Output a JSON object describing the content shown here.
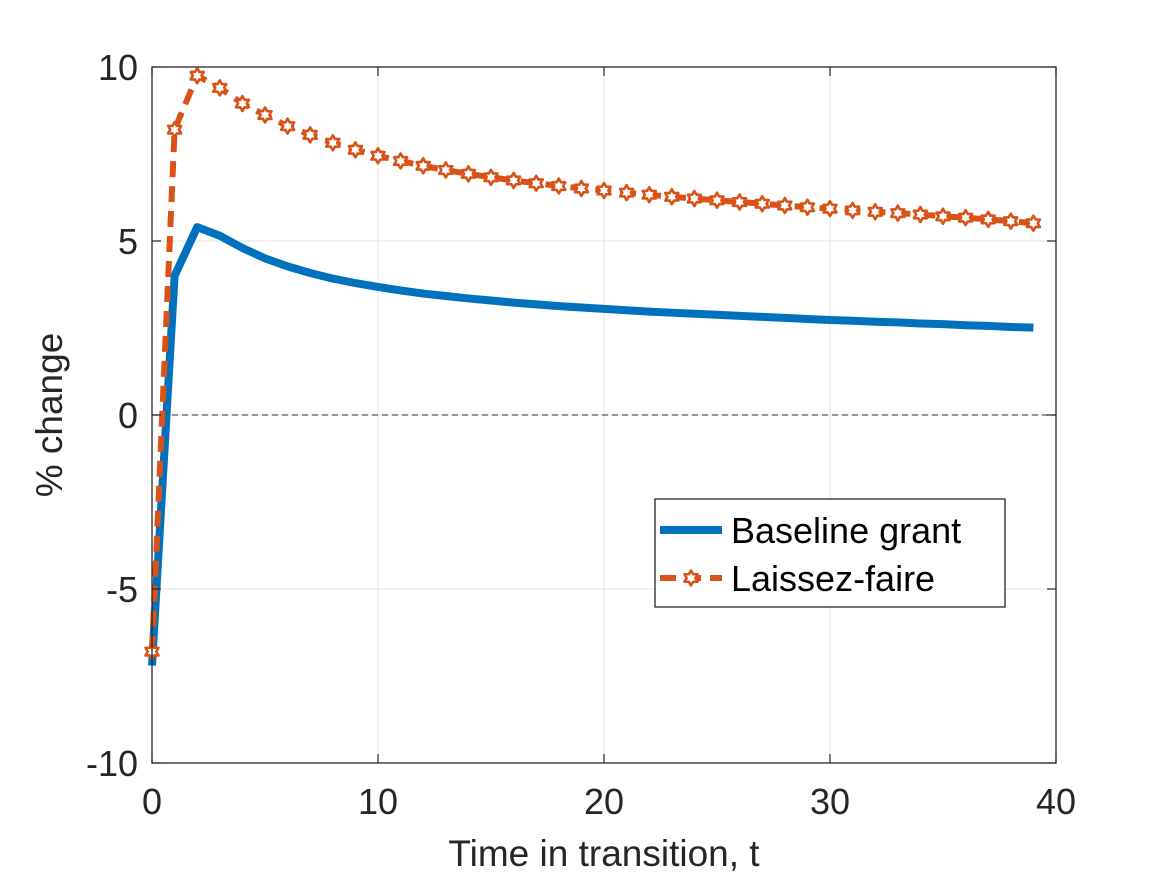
{
  "chart_data": {
    "type": "line",
    "xlabel": "Time in transition, t",
    "ylabel": "% change",
    "xlim": [
      0,
      40
    ],
    "ylim": [
      -10,
      10
    ],
    "xticks": [
      0,
      10,
      20,
      30,
      40
    ],
    "yticks": [
      -10,
      -5,
      0,
      5,
      10
    ],
    "xtick_labels": [
      "0",
      "10",
      "20",
      "30",
      "40"
    ],
    "ytick_labels": [
      "-10",
      "-5",
      "0",
      "5",
      "10"
    ],
    "grid": true,
    "zero_line": "dashed",
    "legend_position": "right-lower",
    "series": [
      {
        "name": "Baseline grant",
        "color": "#0072BD",
        "style": "solid",
        "x": [
          0,
          1,
          2,
          3,
          4,
          5,
          6,
          7,
          8,
          9,
          10,
          11,
          12,
          13,
          14,
          15,
          16,
          17,
          18,
          19,
          20,
          21,
          22,
          23,
          24,
          25,
          26,
          27,
          28,
          29,
          30,
          31,
          32,
          33,
          34,
          35,
          36,
          37,
          38,
          39
        ],
        "values": [
          -7.2,
          4.0,
          5.4,
          5.15,
          4.8,
          4.5,
          4.27,
          4.08,
          3.92,
          3.79,
          3.68,
          3.58,
          3.49,
          3.42,
          3.35,
          3.29,
          3.23,
          3.18,
          3.13,
          3.09,
          3.05,
          3.01,
          2.97,
          2.94,
          2.91,
          2.88,
          2.85,
          2.82,
          2.79,
          2.76,
          2.73,
          2.71,
          2.68,
          2.66,
          2.63,
          2.61,
          2.58,
          2.56,
          2.53,
          2.51
        ]
      },
      {
        "name": "Laissez-faire",
        "color": "#D95319",
        "style": "dashed",
        "marker": "hexagram",
        "x": [
          0,
          1,
          2,
          3,
          4,
          5,
          6,
          7,
          8,
          9,
          10,
          11,
          12,
          13,
          14,
          15,
          16,
          17,
          18,
          19,
          20,
          21,
          22,
          23,
          24,
          25,
          26,
          27,
          28,
          29,
          30,
          31,
          32,
          33,
          34,
          35,
          36,
          37,
          38,
          39
        ],
        "values": [
          -6.8,
          8.2,
          9.75,
          9.4,
          8.95,
          8.62,
          8.3,
          8.05,
          7.82,
          7.62,
          7.45,
          7.3,
          7.16,
          7.04,
          6.93,
          6.83,
          6.74,
          6.66,
          6.58,
          6.51,
          6.45,
          6.39,
          6.33,
          6.27,
          6.22,
          6.17,
          6.12,
          6.07,
          6.02,
          5.97,
          5.93,
          5.88,
          5.84,
          5.8,
          5.76,
          5.71,
          5.67,
          5.62,
          5.57,
          5.51
        ]
      }
    ]
  }
}
